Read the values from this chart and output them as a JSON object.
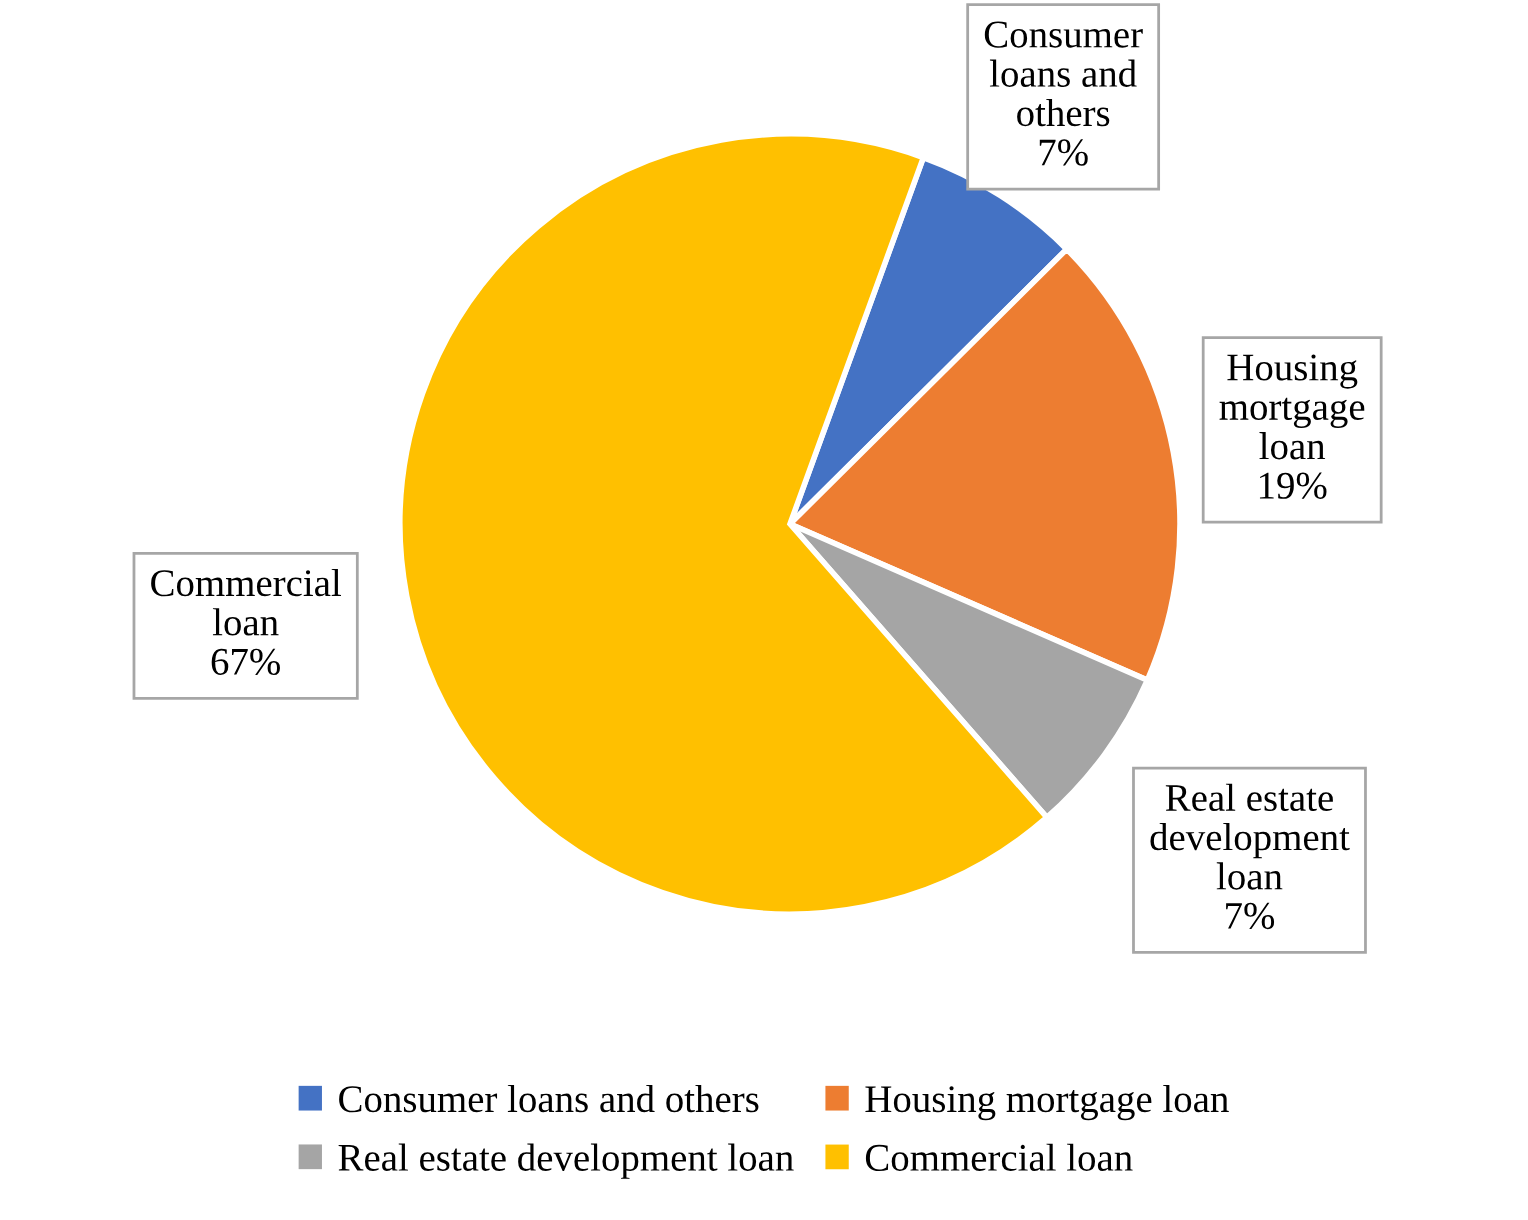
{
  "chart_data": {
    "type": "pie",
    "categories": [
      "Consumer loans and others",
      "Housing mortgage loan",
      "Real estate development loan",
      "Commercial loan"
    ],
    "values": [
      7,
      19,
      7,
      67
    ],
    "colors": [
      "#4472c4",
      "#ed7d31",
      "#a5a5a5",
      "#ffc000"
    ],
    "value_labels": [
      "7%",
      "19%",
      "7%",
      "67%"
    ],
    "legend": "bottom"
  }
}
